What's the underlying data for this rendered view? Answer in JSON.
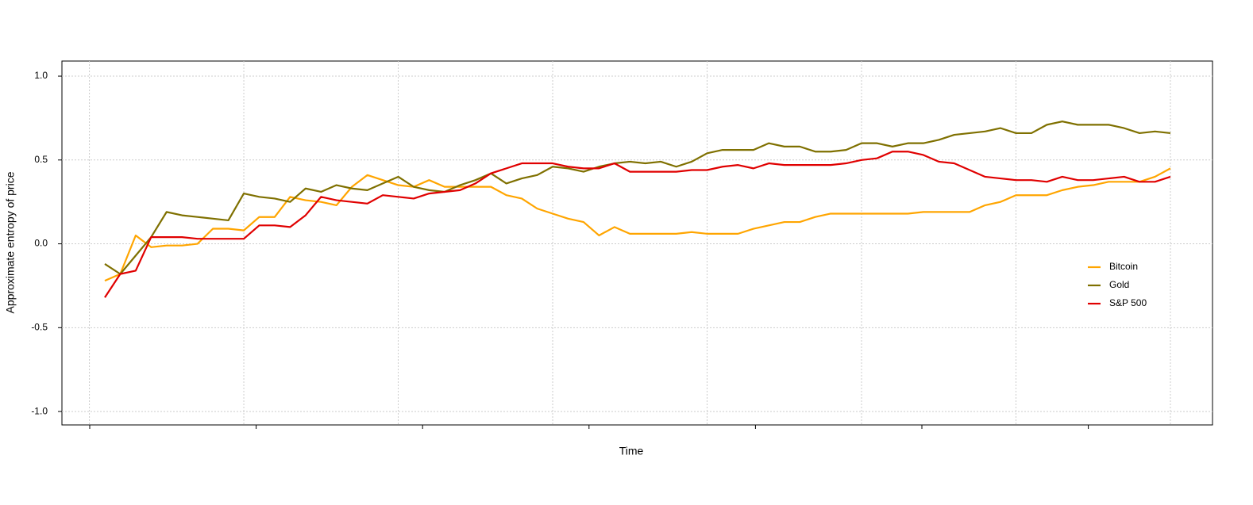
{
  "chart_data": {
    "type": "line",
    "xlabel": "Time",
    "ylabel": "Approximate entropy of price",
    "categories": [
      null,
      null,
      null,
      null,
      null,
      null,
      null,
      null,
      null,
      null,
      null,
      null,
      null,
      null,
      null,
      null,
      null,
      null,
      null,
      null,
      null,
      null,
      null,
      null,
      null,
      null,
      null,
      null,
      null,
      null,
      null,
      null,
      null,
      null,
      null,
      null,
      null,
      null,
      null,
      null,
      null,
      null,
      null,
      null,
      null,
      null,
      null,
      null,
      null,
      null,
      null,
      null,
      null,
      null,
      null,
      null,
      null,
      null,
      null,
      null,
      null,
      null,
      null,
      null,
      null,
      null,
      null,
      null,
      null,
      null
    ],
    "series": [
      {
        "name": "Bitcoin",
        "color": "#ffa500",
        "values": [
          -0.22,
          -0.18,
          0.05,
          -0.02,
          -0.01,
          -0.01,
          0.0,
          0.09,
          0.09,
          0.08,
          0.16,
          0.16,
          0.28,
          0.26,
          0.25,
          0.23,
          0.34,
          0.41,
          0.38,
          0.35,
          0.34,
          0.38,
          0.34,
          0.34,
          0.34,
          0.34,
          0.29,
          0.27,
          0.21,
          0.18,
          0.15,
          0.13,
          0.05,
          0.1,
          0.06,
          0.06,
          0.06,
          0.06,
          0.07,
          0.06,
          0.06,
          0.06,
          0.09,
          0.11,
          0.13,
          0.13,
          0.16,
          0.18,
          0.18,
          0.18,
          0.18,
          0.18,
          0.18,
          0.19,
          0.19,
          0.19,
          0.19,
          0.23,
          0.25,
          0.29,
          0.29,
          0.29,
          0.32,
          0.34,
          0.35,
          0.37,
          0.37,
          0.37,
          0.4,
          0.45
        ]
      },
      {
        "name": "Gold",
        "color": "#7f7000",
        "values": [
          -0.12,
          -0.18,
          -0.07,
          0.04,
          0.19,
          0.17,
          0.16,
          0.15,
          0.14,
          0.3,
          0.28,
          0.27,
          0.25,
          0.33,
          0.31,
          0.35,
          0.33,
          0.32,
          0.36,
          0.4,
          0.34,
          0.32,
          0.31,
          0.35,
          0.38,
          0.42,
          0.36,
          0.39,
          0.41,
          0.46,
          0.45,
          0.43,
          0.46,
          0.48,
          0.49,
          0.48,
          0.49,
          0.46,
          0.49,
          0.54,
          0.56,
          0.56,
          0.56,
          0.6,
          0.58,
          0.58,
          0.55,
          0.55,
          0.56,
          0.6,
          0.6,
          0.58,
          0.6,
          0.6,
          0.62,
          0.65,
          0.66,
          0.67,
          0.69,
          0.66,
          0.66,
          0.71,
          0.73,
          0.71,
          0.71,
          0.71,
          0.69,
          0.66,
          0.67,
          0.66
        ]
      },
      {
        "name": "S&P 500",
        "color": "#e00000",
        "values": [
          -0.32,
          -0.18,
          -0.16,
          0.04,
          0.04,
          0.04,
          0.03,
          0.03,
          0.03,
          0.03,
          0.11,
          0.11,
          0.1,
          0.17,
          0.28,
          0.26,
          0.25,
          0.24,
          0.29,
          0.28,
          0.27,
          0.3,
          0.31,
          0.32,
          0.36,
          0.42,
          0.45,
          0.48,
          0.48,
          0.48,
          0.46,
          0.45,
          0.45,
          0.48,
          0.43,
          0.43,
          0.43,
          0.43,
          0.44,
          0.44,
          0.46,
          0.47,
          0.45,
          0.48,
          0.47,
          0.47,
          0.47,
          0.47,
          0.48,
          0.5,
          0.51,
          0.55,
          0.55,
          0.53,
          0.49,
          0.48,
          0.44,
          0.4,
          0.39,
          0.38,
          0.38,
          0.37,
          0.4,
          0.38,
          0.38,
          0.39,
          0.4,
          0.37,
          0.37,
          0.4
        ]
      }
    ],
    "ylim": [
      -1.08,
      1.09
    ],
    "yticks": [
      {
        "value": -1,
        "label": "-1.0"
      },
      -0.5,
      {
        "value": 0,
        "label": "0.0"
      },
      0.5,
      {
        "value": 1,
        "label": "1.0"
      }
    ],
    "grid": true,
    "legend": "right"
  }
}
